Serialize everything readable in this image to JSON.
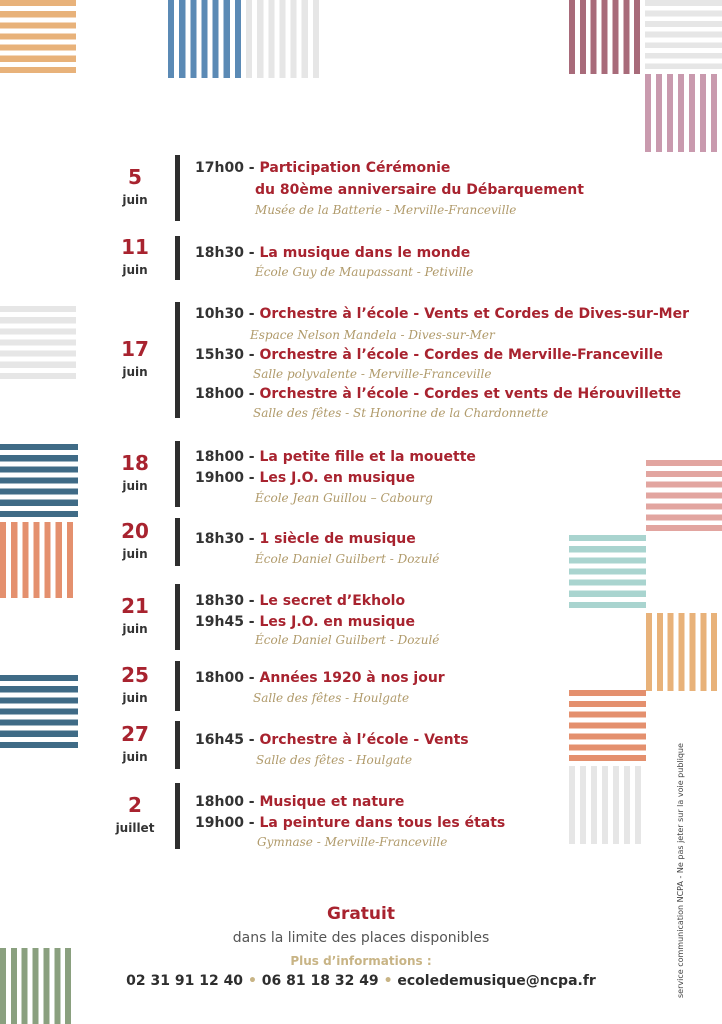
{
  "colors": {
    "accent": "#a8232f",
    "text": "#333333",
    "venue": "#b09a6a",
    "orange": "#e8b27a",
    "blue": "#5b8ab5",
    "rose": "#a86b7a",
    "mauve": "#c99aae",
    "grey": "#e6e6e6",
    "teal": "#3f6b86",
    "coral": "#e4906e",
    "mint": "#a9d4cf",
    "pink": "#e2a5a0",
    "green": "#8aa07f"
  },
  "events": [
    {
      "day": "5",
      "month": "juin",
      "lines": [
        {
          "time": "17h00",
          "title": "Participation Cérémonie"
        },
        {
          "time": "",
          "title": "du 80ème anniversaire du Débarquement"
        }
      ],
      "venue": "Musée de la Batterie - Merville-Franceville"
    },
    {
      "day": "11",
      "month": "juin",
      "lines": [
        {
          "time": "18h30",
          "title": "La musique dans le monde"
        }
      ],
      "venue": "École Guy de Maupassant - Petiville"
    },
    {
      "day": "17",
      "month": "juin",
      "lines": [
        {
          "time": "10h30",
          "title": "Orchestre à l’école - Vents et Cordes de Dives-sur-Mer",
          "venue": "Espace Nelson Mandela - Dives-sur-Mer"
        },
        {
          "time": "15h30",
          "title": "Orchestre à l’école - Cordes de Merville-Franceville",
          "venue": "Salle polyvalente - Merville-Franceville"
        },
        {
          "time": "18h00",
          "title": "Orchestre à l’école - Cordes et vents de Hérouvillette",
          "venue": "Salle des fêtes - St Honorine de la Chardonnette"
        }
      ]
    },
    {
      "day": "18",
      "month": "juin",
      "lines": [
        {
          "time": "18h00",
          "title": "La petite fille et la mouette"
        },
        {
          "time": "19h00",
          "title": "Les J.O. en musique"
        }
      ],
      "venue": "École Jean Guillou – Cabourg"
    },
    {
      "day": "20",
      "month": "juin",
      "lines": [
        {
          "time": "18h30",
          "title": "1 siècle de musique"
        }
      ],
      "venue": "École Daniel Guilbert - Dozulé"
    },
    {
      "day": "21",
      "month": "juin",
      "lines": [
        {
          "time": "18h30",
          "title": "Le secret d’Ekholo"
        },
        {
          "time": "19h45",
          "title": "Les J.O. en musique"
        }
      ],
      "venue": "École Daniel Guilbert - Dozulé"
    },
    {
      "day": "25",
      "month": "juin",
      "lines": [
        {
          "time": "18h00",
          "title": "Années 1920 à nos jour"
        }
      ],
      "venue": "Salle des fêtes - Houlgate"
    },
    {
      "day": "27",
      "month": "juin",
      "lines": [
        {
          "time": "16h45",
          "title": "Orchestre à l’école - Vents"
        }
      ],
      "venue": "Salle des fêtes - Houlgate"
    },
    {
      "day": "2",
      "month": "juillet",
      "lines": [
        {
          "time": "18h00",
          "title": "Musique et nature"
        },
        {
          "time": "19h00",
          "title": "La peinture dans tous les états"
        }
      ],
      "venue": "Gymnase - Merville-Franceville"
    }
  ],
  "footer": {
    "gratuit": "Gratuit",
    "limite": "dans la limite des places disponibles",
    "plus": "Plus d’informations :",
    "phone1": "02 31 91 12 40",
    "phone2": "06 81 18 32 49",
    "email": "ecoledemusique@ncpa.fr",
    "separator": "•"
  },
  "side_note": "service communication NCPA - Ne pas jeter sur la voie publique"
}
